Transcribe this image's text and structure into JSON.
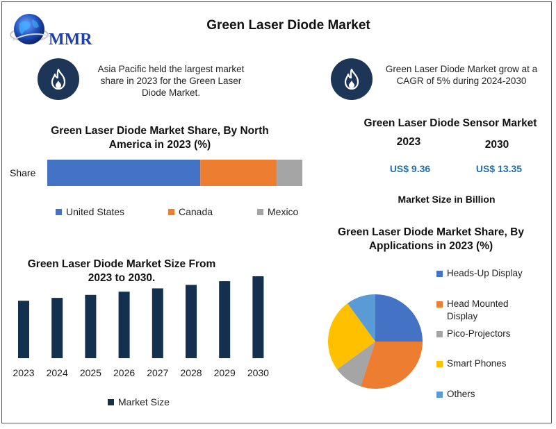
{
  "header": {
    "logo_text": "MMR",
    "title": "Green Laser Diode Market"
  },
  "callouts": [
    {
      "text": "Asia Pacific held the largest market share in 2023 for the Green Laser Diode Market.",
      "icon": "flame-icon"
    },
    {
      "text": "Green Laser Diode Market grow at a CAGR of 5% during 2024-2030",
      "icon": "flame-icon"
    }
  ],
  "sensor_market": {
    "title": "Green Laser Diode Sensor Market",
    "years": [
      "2023",
      "2030"
    ],
    "values": [
      "US$ 9.36",
      "US$ 13.35"
    ],
    "footnote": "Market Size in Billion",
    "value_color": "#1f6fae"
  },
  "colors": {
    "dark_navy": "#1d3557",
    "bar_navy": "#14304f",
    "us_blue": "#4472c4",
    "orange": "#ed7d31",
    "gray": "#a5a5a5",
    "yellow": "#ffc000",
    "light_blue": "#5b9bd5"
  },
  "chart_data": [
    {
      "type": "bar",
      "orientation": "horizontal-stacked",
      "title": "Green Laser Diode Market Share, By North America in 2023 (%)",
      "categories": [
        "Share"
      ],
      "series": [
        {
          "name": "United States",
          "values": [
            60
          ],
          "color": "#4472c4"
        },
        {
          "name": "Canada",
          "values": [
            30
          ],
          "color": "#ed7d31"
        },
        {
          "name": "Mexico",
          "values": [
            10
          ],
          "color": "#a5a5a5"
        }
      ],
      "xlim": [
        0,
        100
      ],
      "legend": "bottom"
    },
    {
      "type": "bar",
      "title": "Green Laser Diode Market Size From 2023 to 2030.",
      "categories": [
        "2023",
        "2024",
        "2025",
        "2026",
        "2027",
        "2028",
        "2029",
        "2030"
      ],
      "series": [
        {
          "name": "Market Size",
          "values": [
            9.36,
            9.83,
            10.32,
            10.84,
            11.38,
            11.95,
            12.55,
            13.35
          ],
          "color": "#14304f"
        }
      ],
      "ylim": [
        0,
        13.35
      ],
      "legend": "bottom"
    },
    {
      "type": "pie",
      "title": "Green Laser Diode Market Share, By Applications in 2023 (%)",
      "series": [
        {
          "name": "Heads-Up Display",
          "value": 25,
          "color": "#4472c4"
        },
        {
          "name": "Head Mounted Display",
          "value": 30,
          "color": "#ed7d31"
        },
        {
          "name": "Pico-Projectors",
          "value": 10,
          "color": "#a5a5a5"
        },
        {
          "name": "Smart Phones",
          "value": 25,
          "color": "#ffc000"
        },
        {
          "name": "Others",
          "value": 10,
          "color": "#5b9bd5"
        }
      ],
      "legend": "right"
    }
  ]
}
